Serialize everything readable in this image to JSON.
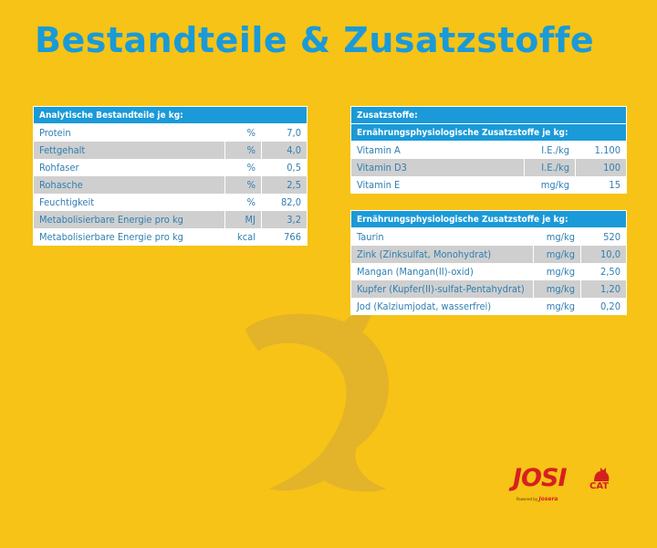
{
  "title": "Bestandteile & Zusatzstoffe",
  "analytical": {
    "header": "Analytische Bestandteile je kg:",
    "rows": [
      {
        "name": "Protein",
        "unit": "%",
        "value": "7,0"
      },
      {
        "name": "Fettgehalt",
        "unit": "%",
        "value": "4,0"
      },
      {
        "name": "Rohfaser",
        "unit": "%",
        "value": "0,5"
      },
      {
        "name": "Rohasche",
        "unit": "%",
        "value": "2,5"
      },
      {
        "name": "Feuchtigkeit",
        "unit": "%",
        "value": "82,0"
      },
      {
        "name": "Metabolisierbare Energie pro kg",
        "unit": "MJ",
        "value": "3,2"
      },
      {
        "name": "Metabolisierbare Energie pro kg",
        "unit": "kcal",
        "value": "766"
      }
    ]
  },
  "additives": {
    "header": "Zusatzstoffe:",
    "subheader": "Ernährungsphysiologische Zusatzstoffe je kg:",
    "rows": [
      {
        "name": "Vitamin A",
        "unit": "I.E./kg",
        "value": "1.100"
      },
      {
        "name": "Vitamin D3",
        "unit": "I.E./kg",
        "value": "100"
      },
      {
        "name": "Vitamin E",
        "unit": "mg/kg",
        "value": "15"
      }
    ]
  },
  "trace": {
    "header": "Ernährungsphysiologische Zusatzstoffe je kg:",
    "rows": [
      {
        "name": "Taurin",
        "unit": "mg/kg",
        "value": "520"
      },
      {
        "name": "Zink (Zinksulfat, Monohydrat)",
        "unit": "mg/kg",
        "value": "10,0"
      },
      {
        "name": "Mangan (Mangan(II)-oxid)",
        "unit": "mg/kg",
        "value": "2,50"
      },
      {
        "name": "Kupfer (Kupfer(II)-sulfat-Pentahydrat)",
        "unit": "mg/kg",
        "value": "1,20"
      },
      {
        "name": "Jod (Kalziumjodat, wasserfrei)",
        "unit": "mg/kg",
        "value": "0,20"
      }
    ]
  },
  "logo": {
    "brand": "JOSI",
    "sub": "CAT",
    "powered": "Powered by",
    "maker": "Josera"
  },
  "colors": {
    "background": "#f6c316",
    "accent": "#1a9ad8",
    "row_alt": "#cfcfcf",
    "brand_red": "#d6201f"
  }
}
